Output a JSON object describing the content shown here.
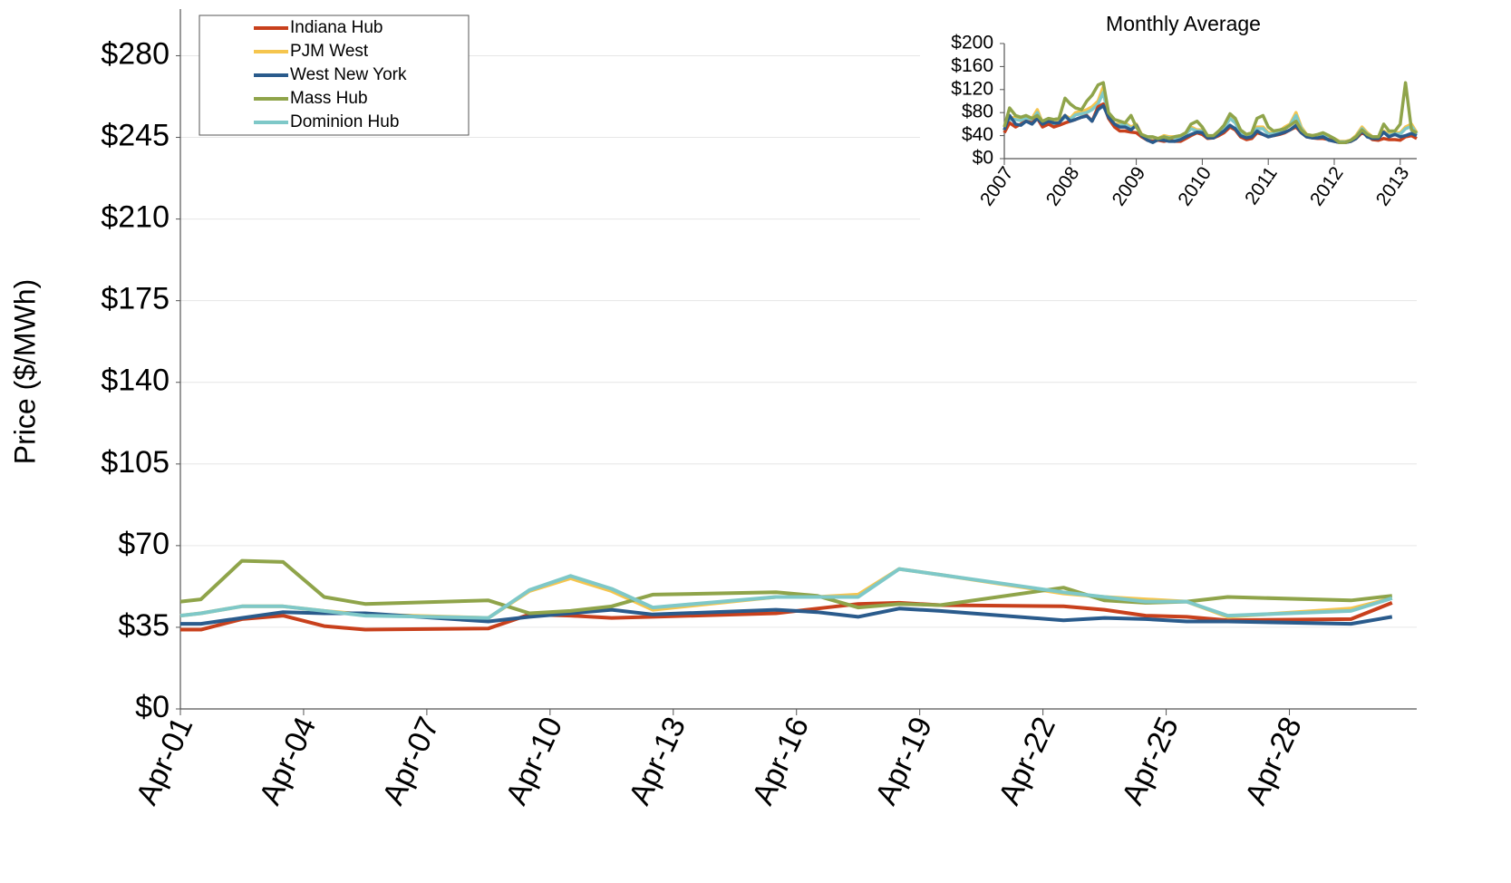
{
  "chart_data": [
    {
      "type": "line",
      "y_label": "Price ($/MWh)",
      "legend": "upper left",
      "grid": true,
      "x": [
        1,
        1.5,
        2.5,
        3.5,
        4.5,
        5.5,
        8.5,
        9.5,
        10.5,
        11.5,
        12.5,
        15.5,
        16.5,
        17.5,
        18.5,
        19.5,
        22.5,
        23.5,
        24.5,
        25.5,
        26.5,
        29.5,
        30.5
      ],
      "xlim": [
        1,
        31.1
      ],
      "xticks": [
        {
          "value": 1,
          "label": "Apr-01"
        },
        {
          "value": 4,
          "label": "Apr-04"
        },
        {
          "value": 7,
          "label": "Apr-07"
        },
        {
          "value": 10,
          "label": "Apr-10"
        },
        {
          "value": 13,
          "label": "Apr-13"
        },
        {
          "value": 16,
          "label": "Apr-16"
        },
        {
          "value": 19,
          "label": "Apr-19"
        },
        {
          "value": 22,
          "label": "Apr-22"
        },
        {
          "value": 25,
          "label": "Apr-25"
        },
        {
          "value": 28,
          "label": "Apr-28"
        }
      ],
      "ylim": [
        0,
        300
      ],
      "yticks": [
        {
          "value": 0,
          "label": "$0"
        },
        {
          "value": 35,
          "label": "$35"
        },
        {
          "value": 70,
          "label": "$70"
        },
        {
          "value": 105,
          "label": "$105"
        },
        {
          "value": 140,
          "label": "$140"
        },
        {
          "value": 175,
          "label": "$175"
        },
        {
          "value": 210,
          "label": "$210"
        },
        {
          "value": 245,
          "label": "$245"
        },
        {
          "value": 280,
          "label": "$280"
        }
      ],
      "series": [
        {
          "name": "Indiana Hub",
          "color": "#c8401c",
          "values": [
            34,
            34,
            38.5,
            40,
            35.5,
            34,
            34.5,
            40.5,
            40,
            39,
            39.5,
            41,
            43,
            45,
            45.5,
            44.5,
            44,
            42.5,
            40,
            39.5,
            38,
            38.5,
            45.5
          ]
        },
        {
          "name": "PJM West",
          "color": "#f5c54e",
          "values": [
            40,
            41,
            44,
            44,
            42,
            40.5,
            39,
            50.5,
            56,
            50.5,
            42.5,
            48,
            48,
            49,
            60,
            57.5,
            49.5,
            48,
            47,
            46,
            39.5,
            43,
            47.5
          ]
        },
        {
          "name": "West New York",
          "color": "#2a5b8c",
          "values": [
            36.5,
            36.5,
            39,
            41.5,
            41,
            41,
            37.5,
            39.5,
            41,
            42.5,
            40.5,
            42.5,
            41.5,
            39.5,
            43,
            42,
            38,
            39,
            38.5,
            37.5,
            37.5,
            36.5,
            39.5
          ]
        },
        {
          "name": "Mass Hub",
          "color": "#8fa44a",
          "values": [
            46,
            47,
            63.5,
            63,
            48,
            45,
            46.5,
            41,
            42,
            44,
            49,
            50,
            48.5,
            43.5,
            45,
            44.5,
            52,
            46.5,
            45.5,
            46,
            48,
            46.5,
            48.5
          ]
        },
        {
          "name": "Dominion Hub",
          "color": "#7ec8c8",
          "values": [
            40,
            41,
            44,
            44,
            42,
            40,
            39,
            51,
            57,
            51.5,
            43.5,
            48,
            48,
            48,
            60,
            57.5,
            50,
            48,
            46,
            46,
            40,
            42,
            47.5
          ]
        }
      ]
    },
    {
      "type": "line",
      "title": "Monthly Average",
      "grid": false,
      "x": [
        2007,
        2007.08,
        2007.17,
        2007.25,
        2007.33,
        2007.42,
        2007.5,
        2007.58,
        2007.67,
        2007.75,
        2007.83,
        2007.92,
        2008,
        2008.08,
        2008.17,
        2008.25,
        2008.33,
        2008.42,
        2008.5,
        2008.58,
        2008.67,
        2008.75,
        2008.83,
        2008.92,
        2009,
        2009.08,
        2009.17,
        2009.25,
        2009.33,
        2009.42,
        2009.5,
        2009.58,
        2009.67,
        2009.75,
        2009.83,
        2009.92,
        2010,
        2010.08,
        2010.17,
        2010.25,
        2010.33,
        2010.42,
        2010.5,
        2010.58,
        2010.67,
        2010.75,
        2010.83,
        2010.92,
        2011,
        2011.08,
        2011.17,
        2011.25,
        2011.33,
        2011.42,
        2011.5,
        2011.58,
        2011.67,
        2011.75,
        2011.83,
        2011.92,
        2012,
        2012.08,
        2012.17,
        2012.25,
        2012.33,
        2012.42,
        2012.5,
        2012.58,
        2012.67,
        2012.75,
        2012.83,
        2012.92,
        2013,
        2013.08,
        2013.17,
        2013.25
      ],
      "xlim": [
        2007,
        2013.25
      ],
      "xticks": [
        2007,
        2008,
        2009,
        2010,
        2011,
        2012,
        2013
      ],
      "ylim": [
        0,
        200
      ],
      "yticks": [
        {
          "value": 0,
          "label": "$0"
        },
        {
          "value": 40,
          "label": "$40"
        },
        {
          "value": 80,
          "label": "$80"
        },
        {
          "value": 120,
          "label": "$120"
        },
        {
          "value": 160,
          "label": "$160"
        },
        {
          "value": 200,
          "label": "$200"
        }
      ],
      "series": [
        {
          "color": "#f5c54e",
          "values": [
            50,
            70,
            72,
            70,
            72,
            70,
            85,
            62,
            68,
            62,
            65,
            75,
            70,
            80,
            82,
            85,
            90,
            100,
            125,
            75,
            60,
            60,
            62,
            55,
            60,
            42,
            35,
            32,
            35,
            40,
            38,
            38,
            40,
            45,
            55,
            50,
            50,
            38,
            38,
            45,
            55,
            75,
            65,
            45,
            40,
            42,
            55,
            55,
            45,
            45,
            48,
            55,
            60,
            80,
            55,
            42,
            40,
            38,
            42,
            38,
            35,
            30,
            30,
            32,
            40,
            55,
            45,
            38,
            38,
            48,
            42,
            45,
            45,
            55,
            60,
            45
          ]
        },
        {
          "color": "#7ec8c8",
          "values": [
            48,
            68,
            68,
            66,
            70,
            66,
            80,
            60,
            65,
            60,
            63,
            72,
            68,
            76,
            78,
            80,
            85,
            95,
            115,
            72,
            58,
            58,
            60,
            52,
            58,
            40,
            34,
            31,
            34,
            38,
            36,
            36,
            38,
            43,
            52,
            48,
            48,
            37,
            37,
            44,
            52,
            70,
            62,
            44,
            39,
            41,
            52,
            52,
            43,
            43,
            46,
            52,
            58,
            75,
            52,
            41,
            39,
            37,
            41,
            37,
            34,
            29,
            29,
            31,
            38,
            52,
            43,
            37,
            37,
            46,
            40,
            43,
            43,
            52,
            56,
            43
          ]
        },
        {
          "color": "#c8401c",
          "values": [
            45,
            62,
            55,
            60,
            65,
            62,
            70,
            55,
            60,
            55,
            58,
            62,
            65,
            68,
            72,
            75,
            65,
            90,
            95,
            70,
            55,
            48,
            48,
            46,
            45,
            38,
            32,
            30,
            32,
            30,
            32,
            30,
            30,
            35,
            40,
            45,
            42,
            35,
            36,
            40,
            45,
            55,
            50,
            38,
            33,
            35,
            45,
            42,
            38,
            40,
            42,
            45,
            50,
            55,
            45,
            38,
            36,
            35,
            35,
            33,
            30,
            28,
            28,
            30,
            35,
            45,
            40,
            33,
            32,
            35,
            33,
            33,
            32,
            38,
            40,
            35
          ]
        },
        {
          "color": "#2a5b8c",
          "values": [
            50,
            75,
            60,
            58,
            65,
            60,
            70,
            60,
            65,
            62,
            62,
            75,
            65,
            68,
            72,
            74,
            65,
            85,
            92,
            72,
            60,
            55,
            55,
            50,
            58,
            40,
            32,
            28,
            33,
            32,
            30,
            30,
            33,
            38,
            42,
            46,
            45,
            36,
            36,
            42,
            48,
            58,
            52,
            40,
            36,
            38,
            48,
            42,
            38,
            40,
            43,
            46,
            50,
            58,
            45,
            38,
            36,
            36,
            38,
            32,
            30,
            28,
            28,
            30,
            35,
            48,
            38,
            35,
            35,
            46,
            38,
            42,
            38,
            40,
            44,
            40
          ]
        },
        {
          "color": "#8fa44a",
          "values": [
            55,
            88,
            75,
            72,
            75,
            70,
            75,
            65,
            70,
            68,
            70,
            105,
            95,
            88,
            85,
            100,
            110,
            128,
            132,
            80,
            68,
            65,
            62,
            75,
            55,
            42,
            38,
            38,
            35,
            38,
            35,
            38,
            40,
            45,
            60,
            65,
            55,
            40,
            40,
            48,
            58,
            78,
            70,
            50,
            42,
            45,
            70,
            75,
            55,
            48,
            50,
            52,
            58,
            65,
            50,
            42,
            40,
            42,
            45,
            40,
            35,
            28,
            28,
            32,
            38,
            50,
            42,
            38,
            38,
            60,
            48,
            48,
            60,
            132,
            50,
            45
          ]
        }
      ]
    }
  ]
}
